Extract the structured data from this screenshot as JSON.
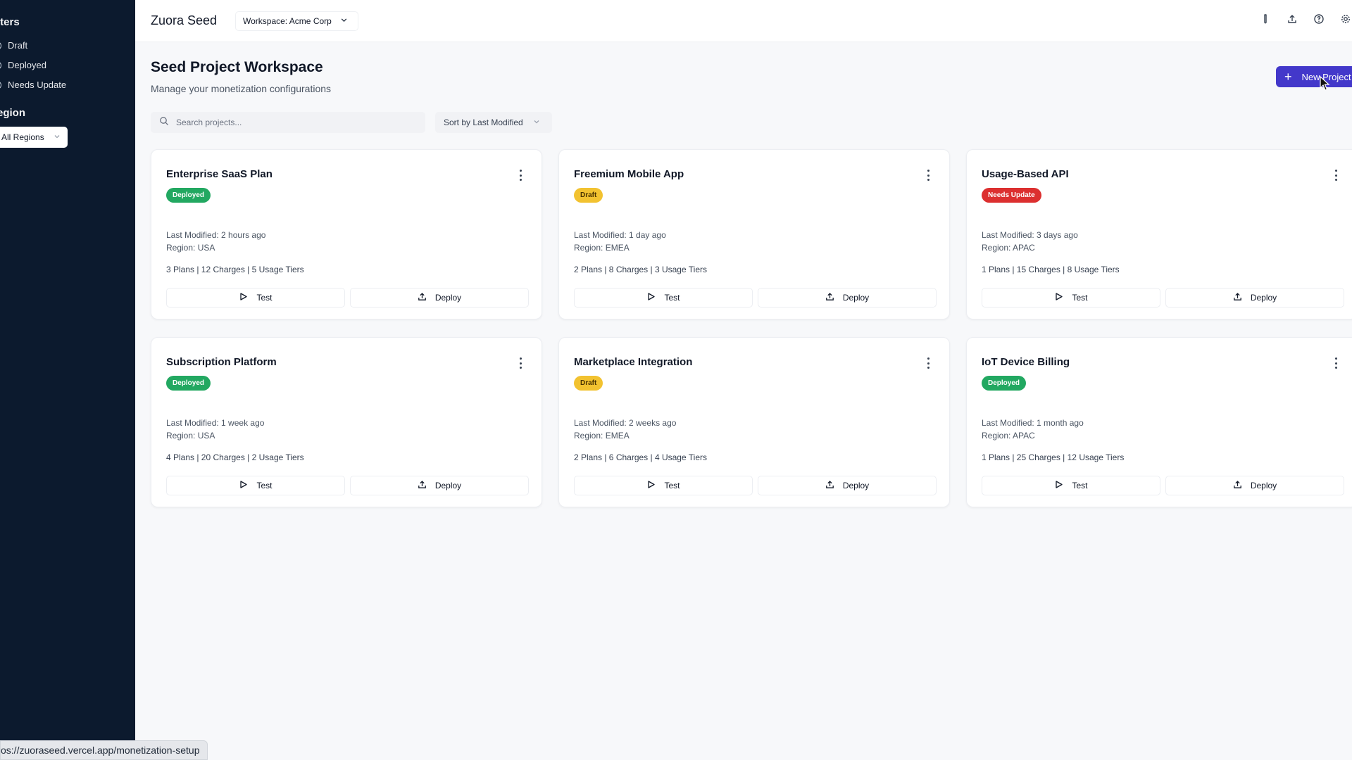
{
  "sidebar": {
    "filters_heading": "lters",
    "filters": [
      {
        "label": "Draft"
      },
      {
        "label": "Deployed"
      },
      {
        "label": "Needs Update"
      }
    ],
    "region_heading": "egion",
    "region_select": "All Regions"
  },
  "topbar": {
    "app_name": "Zuora Seed",
    "workspace": "Workspace: Acme Corp",
    "icons": [
      "flask-icon",
      "upload-icon",
      "help-icon",
      "settings-icon"
    ]
  },
  "main": {
    "title": "Seed Project Workspace",
    "subtitle": "Manage your monetization configurations",
    "new_project_label": "New Project",
    "search_placeholder": "Search projects...",
    "sort_label": "Sort by Last Modified"
  },
  "projects": [
    {
      "title": "Enterprise SaaS Plan",
      "status": "Deployed",
      "status_type": "deployed",
      "modified": "Last Modified: 2 hours ago",
      "region": "Region: USA",
      "summary": "3 Plans | 12 Charges | 5 Usage Tiers",
      "test_label": "Test",
      "deploy_label": "Deploy"
    },
    {
      "title": "Freemium Mobile App",
      "status": "Draft",
      "status_type": "draft",
      "modified": "Last Modified: 1 day ago",
      "region": "Region: EMEA",
      "summary": "2 Plans | 8 Charges | 3 Usage Tiers",
      "test_label": "Test",
      "deploy_label": "Deploy"
    },
    {
      "title": "Usage-Based API",
      "status": "Needs Update",
      "status_type": "needs",
      "modified": "Last Modified: 3 days ago",
      "region": "Region: APAC",
      "summary": "1 Plans | 15 Charges | 8 Usage Tiers",
      "test_label": "Test",
      "deploy_label": "Deploy"
    },
    {
      "title": "Subscription Platform",
      "status": "Deployed",
      "status_type": "deployed",
      "modified": "Last Modified: 1 week ago",
      "region": "Region: USA",
      "summary": "4 Plans | 20 Charges | 2 Usage Tiers",
      "test_label": "Test",
      "deploy_label": "Deploy"
    },
    {
      "title": "Marketplace Integration",
      "status": "Draft",
      "status_type": "draft",
      "modified": "Last Modified: 2 weeks ago",
      "region": "Region: EMEA",
      "summary": "2 Plans | 6 Charges | 4 Usage Tiers",
      "test_label": "Test",
      "deploy_label": "Deploy"
    },
    {
      "title": "IoT Device Billing",
      "status": "Deployed",
      "status_type": "deployed",
      "modified": "Last Modified: 1 month ago",
      "region": "Region: APAC",
      "summary": "1 Plans | 25 Charges | 12 Usage Tiers",
      "test_label": "Test",
      "deploy_label": "Deploy"
    }
  ],
  "status_bar": {
    "url": "os://zuoraseed.vercel.app/monetization-setup"
  },
  "colors": {
    "sidebar_bg": "#0c1a2e",
    "accent": "#4338ca",
    "deployed": "#22a861",
    "draft": "#f2c230",
    "needs_update": "#dc2f2f"
  }
}
